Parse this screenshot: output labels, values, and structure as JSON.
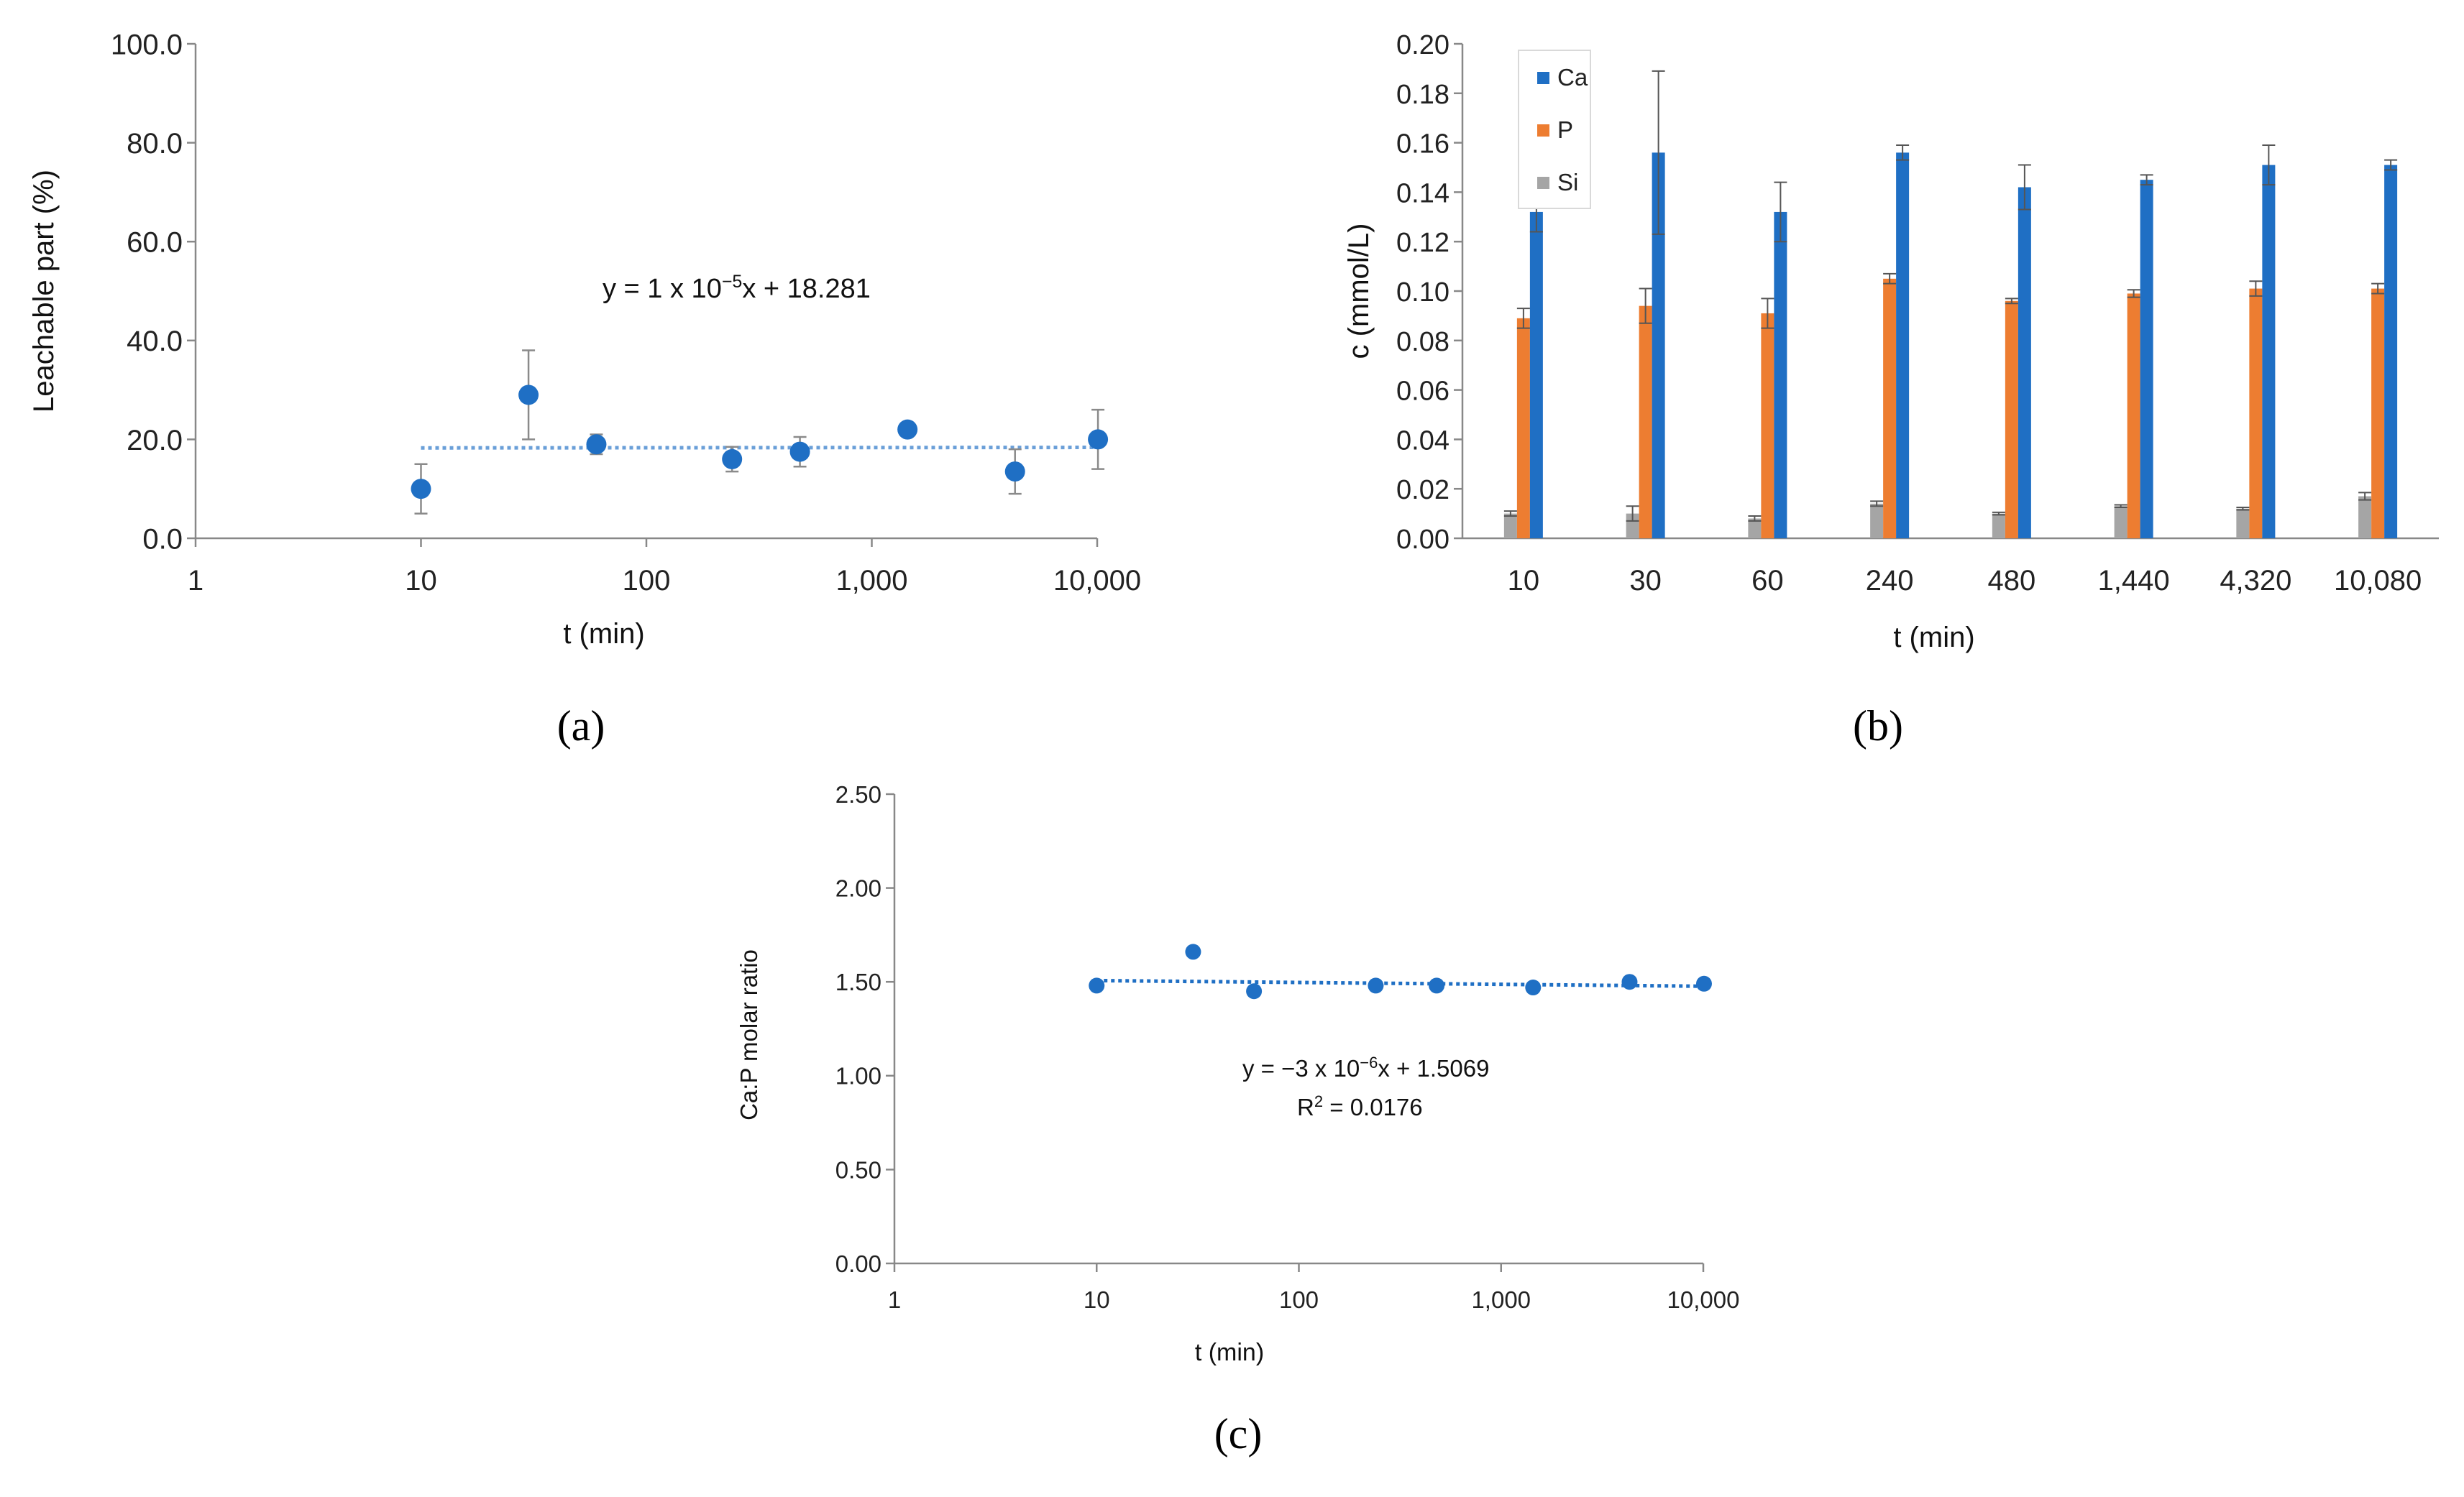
{
  "chart_data": [
    {
      "id": "a",
      "type": "scatter",
      "caption": "(a)",
      "xlabel": "t (min)",
      "ylabel": "Leachable part (%)",
      "x_scale": "log",
      "xlim": [
        1,
        10000
      ],
      "ylim": [
        0,
        100
      ],
      "x_tick_values": [
        1,
        10,
        100,
        1000,
        10000
      ],
      "x_tick_labels": [
        "1",
        "10",
        "100",
        "1,000",
        "10,000"
      ],
      "y_tick_values": [
        0,
        20,
        40,
        60,
        80,
        100
      ],
      "y_tick_labels": [
        "0.0",
        "20.0",
        "40.0",
        "60.0",
        "80.0",
        "100.0"
      ],
      "points": [
        {
          "x": 10,
          "y": 10.0,
          "err": 5.0
        },
        {
          "x": 30,
          "y": 29.0,
          "err": 9.0
        },
        {
          "x": 60,
          "y": 19.0,
          "err": 2.0
        },
        {
          "x": 240,
          "y": 16.0,
          "err": 2.5
        },
        {
          "x": 480,
          "y": 17.5,
          "err": 3.0
        },
        {
          "x": 1440,
          "y": 22.0,
          "err": 0
        },
        {
          "x": 4320,
          "y": 13.5,
          "err": 4.5
        },
        {
          "x": 10080,
          "y": 20.0,
          "err": 6.0
        }
      ],
      "trendline": {
        "x_range": [
          10,
          10080
        ],
        "slope": 1e-05,
        "intercept": 18.281
      },
      "equation": {
        "pre": "y = 1 x 10",
        "exp": "−5",
        "post": "x + 18.281"
      },
      "colors": {
        "marker": "#1f6fc4",
        "trend": "#6a9fd8",
        "axis": "#888888",
        "error": "#8a8a8a"
      }
    },
    {
      "id": "b",
      "type": "bar",
      "caption": "(b)",
      "xlabel": "t (min)",
      "ylabel": "c (mmol/L)",
      "categories": [
        "10",
        "30",
        "60",
        "240",
        "480",
        "1,440",
        "4,320",
        "10,080"
      ],
      "ylim": [
        0,
        0.2
      ],
      "y_tick_values": [
        0,
        0.02,
        0.04,
        0.06,
        0.08,
        0.1,
        0.12,
        0.14,
        0.16,
        0.18,
        0.2
      ],
      "y_tick_labels": [
        "0.00",
        "0.02",
        "0.04",
        "0.06",
        "0.08",
        "0.10",
        "0.12",
        "0.14",
        "0.16",
        "0.18",
        "0.20"
      ],
      "legend_position": "top-left",
      "series": [
        {
          "name": "Si",
          "color": "#a5a5a5",
          "values": [
            0.01,
            0.01,
            0.008,
            0.014,
            0.01,
            0.013,
            0.012,
            0.017
          ],
          "errors": [
            0.001,
            0.003,
            0.001,
            0.001,
            0.0005,
            0.0005,
            0.0005,
            0.0015
          ]
        },
        {
          "name": "P",
          "color": "#ed7d31",
          "values": [
            0.089,
            0.094,
            0.091,
            0.105,
            0.096,
            0.099,
            0.101,
            0.101
          ],
          "errors": [
            0.004,
            0.007,
            0.006,
            0.002,
            0.001,
            0.0015,
            0.003,
            0.002
          ]
        },
        {
          "name": "Ca",
          "color": "#1f6fc4",
          "values": [
            0.132,
            0.156,
            0.132,
            0.156,
            0.142,
            0.145,
            0.151,
            0.151
          ],
          "errors": [
            0.008,
            0.033,
            0.012,
            0.003,
            0.009,
            0.002,
            0.008,
            0.002
          ]
        }
      ],
      "legend_order": [
        "Ca",
        "P",
        "Si"
      ],
      "colors": {
        "axis": "#888888",
        "error": "#555555"
      }
    },
    {
      "id": "c",
      "type": "scatter",
      "caption": "(c)",
      "xlabel": "t (min)",
      "ylabel": "Ca:P molar ratio",
      "x_scale": "log",
      "xlim": [
        1,
        10000
      ],
      "ylim": [
        0,
        2.5
      ],
      "x_tick_values": [
        1,
        10,
        100,
        1000,
        10000
      ],
      "x_tick_labels": [
        "1",
        "10",
        "100",
        "1,000",
        "10,000"
      ],
      "y_tick_values": [
        0,
        0.5,
        1.0,
        1.5,
        2.0,
        2.5
      ],
      "y_tick_labels": [
        "0.00",
        "0.50",
        "1.00",
        "1.50",
        "2.00",
        "2.50"
      ],
      "points": [
        {
          "x": 10,
          "y": 1.48
        },
        {
          "x": 30,
          "y": 1.66
        },
        {
          "x": 60,
          "y": 1.45
        },
        {
          "x": 240,
          "y": 1.48
        },
        {
          "x": 480,
          "y": 1.48
        },
        {
          "x": 1440,
          "y": 1.47
        },
        {
          "x": 4320,
          "y": 1.5
        },
        {
          "x": 10080,
          "y": 1.49
        }
      ],
      "trendline": {
        "x_range": [
          10,
          10080
        ],
        "slope": -3e-06,
        "intercept": 1.5069
      },
      "equation": {
        "pre": "y = −3 x 10",
        "exp": "−6",
        "post": "x + 1.5069"
      },
      "r2": {
        "pre": "R",
        "exp": "2",
        "post": " = 0.0176"
      },
      "colors": {
        "marker": "#1f6fc4",
        "trend": "#1f6fc4",
        "axis": "#888888"
      }
    }
  ]
}
